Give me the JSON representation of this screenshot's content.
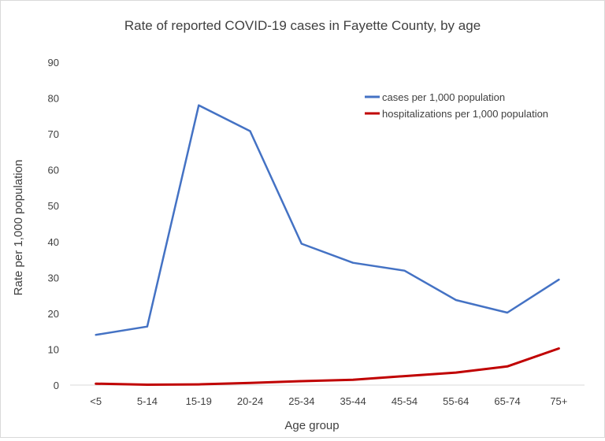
{
  "chart_data": {
    "type": "line",
    "title": "Rate of reported COVID-19 cases in Fayette County, by age",
    "xlabel": "Age group",
    "ylabel": "Rate per 1,000 population",
    "categories": [
      "<5",
      "5-14",
      "15-19",
      "20-24",
      "25-34",
      "35-44",
      "45-54",
      "55-64",
      "65-74",
      "75+"
    ],
    "ylim": [
      0,
      90
    ],
    "yticks": [
      0,
      10,
      20,
      30,
      40,
      50,
      60,
      70,
      80,
      90
    ],
    "grid": false,
    "legend_position": "top-right",
    "series": [
      {
        "name": "cases per 1,000 population",
        "color": "#4472c4",
        "values": [
          14,
          16.3,
          78,
          70.8,
          39.4,
          34.1,
          31.9,
          23.7,
          20.2,
          29.4
        ]
      },
      {
        "name": "hospitalizations per 1,000 population",
        "color": "#c00000",
        "values": [
          0.4,
          0.1,
          0.2,
          0.6,
          1.1,
          1.5,
          2.5,
          3.5,
          5.2,
          10.2
        ]
      }
    ]
  }
}
